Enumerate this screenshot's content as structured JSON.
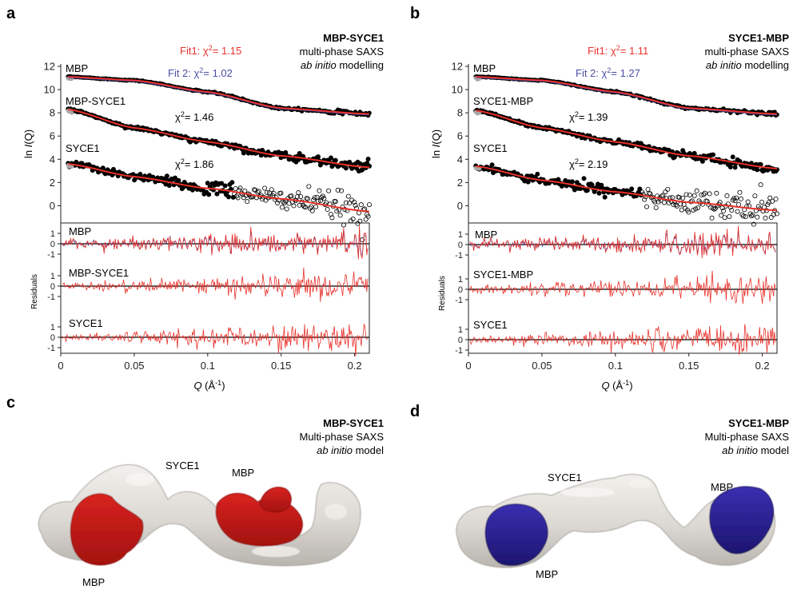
{
  "panels": [
    {
      "letter": "a",
      "title": "MBP-SYCE1",
      "subtitle": "multi-phase SAXS",
      "method_italic": "ab initio",
      "method_rest": " modelling",
      "fit1": {
        "label": "Fit1: ",
        "chi_symbol": "χ",
        "sup": "2",
        "value": "= 1.15",
        "color": "#e8312a"
      },
      "fit2": {
        "label": "Fit 2: ",
        "chi_symbol": "χ",
        "sup": "2",
        "value": "= 1.02",
        "color": "#4b4fa6"
      },
      "traces": [
        {
          "label": "MBP",
          "chi": ""
        },
        {
          "label": "MBP-SYCE1",
          "chi": "= 1.46"
        },
        {
          "label": "SYCE1",
          "chi": "= 1.86"
        }
      ],
      "residual_labels": [
        "MBP",
        "MBP-SYCE1",
        "SYCE1"
      ]
    },
    {
      "letter": "b",
      "title": "SYCE1-MBP",
      "subtitle": "multi-phase SAXS",
      "method_italic": "ab initio",
      "method_rest": " modelling",
      "fit1": {
        "label": "Fit1: ",
        "chi_symbol": "χ",
        "sup": "2",
        "value": "= 1.11",
        "color": "#e8312a"
      },
      "fit2": {
        "label": "Fit 2: ",
        "chi_symbol": "χ",
        "sup": "2",
        "value": "= 1.27",
        "color": "#4b4fa6"
      },
      "traces": [
        {
          "label": "MBP",
          "chi": ""
        },
        {
          "label": "SYCE1-MBP",
          "chi": "= 1.39"
        },
        {
          "label": "SYCE1",
          "chi": "= 2.19"
        }
      ],
      "residual_labels": [
        "MBP",
        "SYCE1-MBP",
        "SYCE1"
      ]
    }
  ],
  "axes": {
    "ylabel_main_prefix": "ln ",
    "ylabel_main_italic": "I",
    "ylabel_main_paren": "(Q)",
    "ylabel_resid": "Residuals",
    "xlabel_italic": "Q",
    "xlabel_unit": " (Å",
    "xlabel_exp": "-1",
    "xlabel_close": ")"
  },
  "chart_data": [
    {
      "type": "scatter",
      "panel": "a",
      "xlim": [
        0,
        0.21
      ],
      "ylim": [
        -1,
        12
      ],
      "xticks": [
        "0",
        "0.05",
        "0.1",
        "0.15",
        "0.2"
      ],
      "yticks": [
        "0",
        "2",
        "4",
        "6",
        "8",
        "10",
        "12"
      ],
      "series": [
        {
          "name": "MBP",
          "x": [
            0.005,
            0.05,
            0.1,
            0.15,
            0.21
          ],
          "y": [
            11.1,
            10.8,
            9.8,
            8.4,
            7.9
          ]
        },
        {
          "name": "MBP-SYCE1",
          "x": [
            0.005,
            0.05,
            0.1,
            0.15,
            0.21
          ],
          "y": [
            8.3,
            6.7,
            5.5,
            4.3,
            3.3
          ]
        },
        {
          "name": "SYCE1",
          "x": [
            0.005,
            0.05,
            0.1,
            0.15,
            0.21
          ],
          "y": [
            3.6,
            2.5,
            1.5,
            0.6,
            -0.5
          ]
        }
      ],
      "residual_ticks": [
        "1",
        "0",
        "-1"
      ]
    },
    {
      "type": "scatter",
      "panel": "b",
      "xlim": [
        0,
        0.21
      ],
      "ylim": [
        -1,
        12
      ],
      "xticks": [
        "0",
        "0.05",
        "0.1",
        "0.15",
        "0.2"
      ],
      "yticks": [
        "0",
        "2",
        "4",
        "6",
        "8",
        "10",
        "12"
      ],
      "series": [
        {
          "name": "MBP",
          "x": [
            0.005,
            0.05,
            0.1,
            0.15,
            0.21
          ],
          "y": [
            11.1,
            10.8,
            9.8,
            8.4,
            7.9
          ]
        },
        {
          "name": "SYCE1-MBP",
          "x": [
            0.005,
            0.05,
            0.1,
            0.15,
            0.21
          ],
          "y": [
            8.2,
            6.7,
            5.5,
            4.3,
            3.2
          ]
        },
        {
          "name": "SYCE1",
          "x": [
            0.005,
            0.05,
            0.1,
            0.15,
            0.21
          ],
          "y": [
            3.4,
            2.2,
            1.2,
            0.3,
            -0.4
          ]
        }
      ],
      "residual_ticks": [
        "1",
        "0",
        "-1"
      ]
    }
  ],
  "models": [
    {
      "letter": "c",
      "title": "MBP-SYCE1",
      "subtitle": "Multi-phase SAXS",
      "method_italic": "ab initio",
      "method_rest": " model",
      "labels": [
        "SYCE1",
        "MBP",
        "MBP"
      ],
      "colors": {
        "syce1": "#e4e1dd",
        "mbp": "#c0171d"
      }
    },
    {
      "letter": "d",
      "title": "SYCE1-MBP",
      "subtitle": "Multi-phase SAXS",
      "method_italic": "ab initio",
      "method_rest": " model",
      "labels": [
        "SYCE1",
        "MBP",
        "MBP"
      ],
      "colors": {
        "syce1": "#e4e1dd",
        "mbp": "#2b1f8e"
      }
    }
  ],
  "colors": {
    "fit1": "#e8312a",
    "fit2": "#4b4fa6",
    "data": "#000000",
    "text": "#231f20"
  }
}
